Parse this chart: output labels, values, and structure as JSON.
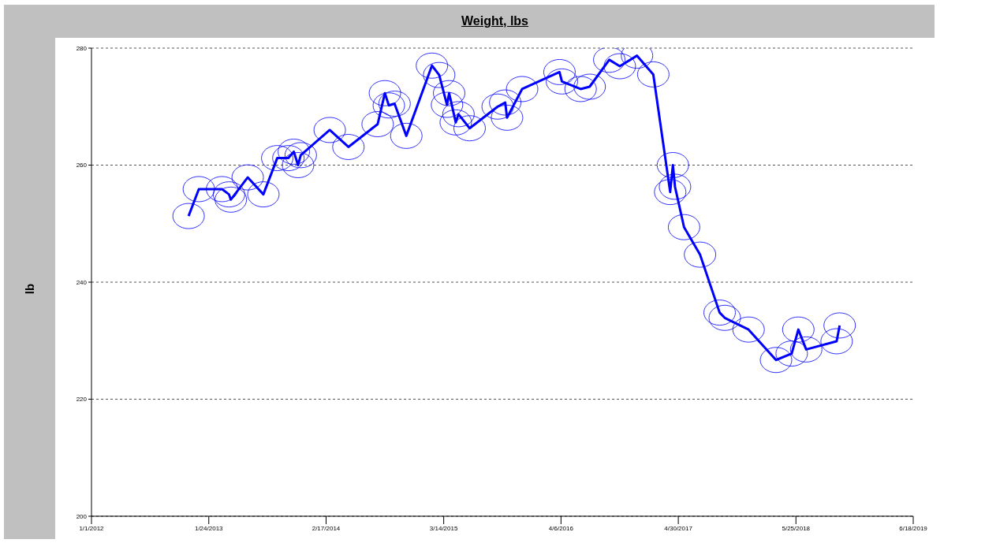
{
  "chart_data": {
    "type": "line",
    "title": "Weight, lbs",
    "ylabel": "lb",
    "x": [
      "2012-11-18",
      "2012-12-22",
      "2013-03-09",
      "2013-04-01",
      "2013-04-07",
      "2013-06-02",
      "2013-07-24",
      "2013-09-08",
      "2013-10-15",
      "2013-11-02",
      "2013-11-16",
      "2013-11-25",
      "2014-03-01",
      "2014-05-02",
      "2014-08-07",
      "2014-08-31",
      "2014-09-13",
      "2014-10-02",
      "2014-11-10",
      "2015-02-03",
      "2015-02-27",
      "2015-03-25",
      "2015-04-01",
      "2015-04-23",
      "2015-05-02",
      "2015-06-08",
      "2015-09-09",
      "2015-10-04",
      "2015-10-10",
      "2015-11-29",
      "2016-04-01",
      "2016-04-09",
      "2016-06-10",
      "2016-07-10",
      "2016-09-13",
      "2016-10-18",
      "2016-12-14",
      "2017-02-06",
      "2017-04-03",
      "2017-04-12",
      "2017-04-19",
      "2017-05-19",
      "2017-07-11",
      "2017-09-14",
      "2017-10-01",
      "2017-12-19",
      "2018-03-20",
      "2018-05-11",
      "2018-06-02",
      "2018-06-28",
      "2018-10-07",
      "2018-10-17"
    ],
    "series": [
      {
        "color": "#0000ff",
        "values": [
          251.3,
          255.9,
          255.9,
          255.0,
          254.1,
          257.9,
          255.0,
          261.2,
          261.2,
          262.3,
          260.0,
          261.7,
          266.0,
          263.1,
          267.0,
          272.3,
          270.2,
          270.5,
          265.0,
          277.0,
          275.4,
          270.3,
          272.3,
          267.3,
          268.7,
          266.3,
          270.0,
          270.7,
          268.1,
          273.0,
          275.9,
          274.3,
          273.0,
          273.4,
          278.0,
          276.9,
          278.7,
          275.5,
          255.4,
          260.0,
          256.3,
          249.4,
          244.7,
          234.8,
          233.9,
          231.9,
          226.7,
          227.8,
          231.9,
          228.5,
          229.9,
          232.6
        ]
      }
    ],
    "xlim": [
      "2012-01-01",
      "2019-06-18"
    ],
    "xticks": [
      {
        "value": "2012-01-01",
        "label": "1/1/2012"
      },
      {
        "value": "2013-01-24",
        "label": "1/24/2013"
      },
      {
        "value": "2014-02-17",
        "label": "2/17/2014"
      },
      {
        "value": "2015-03-14",
        "label": "3/14/2015"
      },
      {
        "value": "2016-04-06",
        "label": "4/6/2016"
      },
      {
        "value": "2017-04-30",
        "label": "4/30/2017"
      },
      {
        "value": "2018-05-25",
        "label": "5/25/2018"
      },
      {
        "value": "2019-06-18",
        "label": "6/18/2019"
      }
    ],
    "ylim": [
      200,
      280
    ],
    "yticks": [
      200,
      220,
      240,
      260,
      280
    ],
    "grid": "y",
    "legend": false,
    "marker": "circle",
    "line_style": "solid"
  }
}
